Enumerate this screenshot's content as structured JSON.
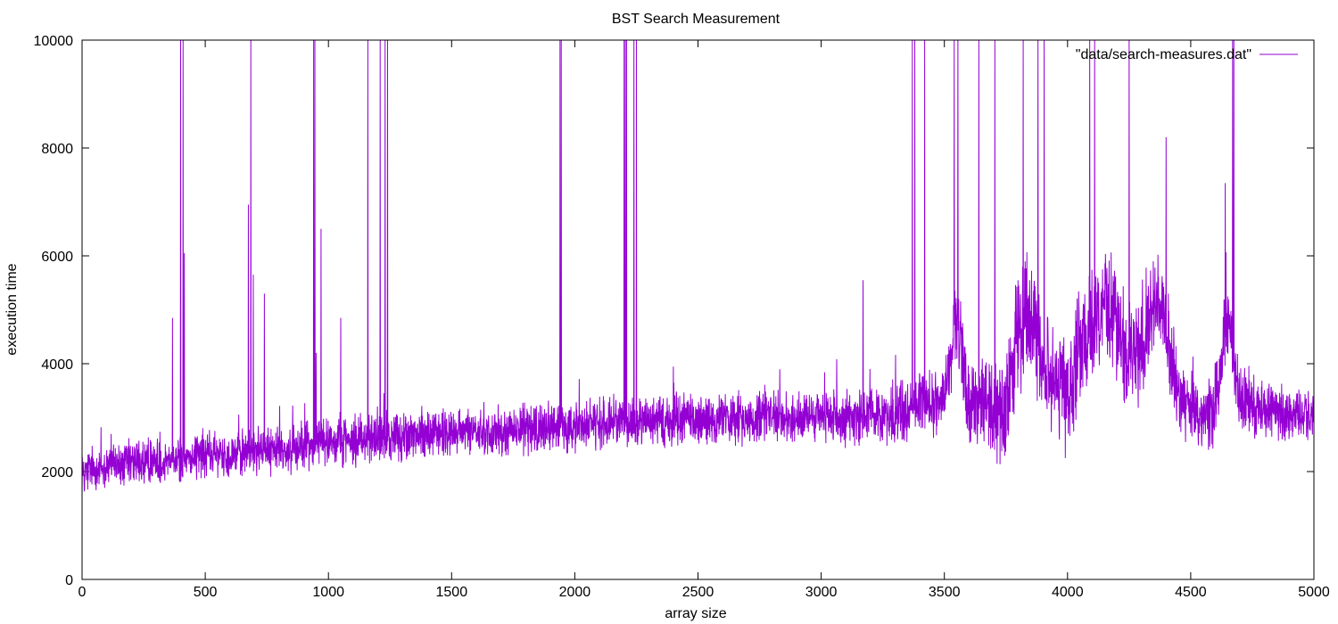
{
  "chart_data": {
    "type": "line",
    "title": "BST Search Measurement",
    "xlabel": "array size",
    "ylabel": "execution time",
    "xlim": [
      0,
      5000
    ],
    "ylim": [
      0,
      10000
    ],
    "x_ticks": [
      0,
      500,
      1000,
      1500,
      2000,
      2500,
      3000,
      3500,
      4000,
      4500,
      5000
    ],
    "y_ticks": [
      0,
      2000,
      4000,
      6000,
      8000,
      10000
    ],
    "x_tick_labels": [
      "0",
      "500",
      "1000",
      "1500",
      "2000",
      "2500",
      "3000",
      "3500",
      "4000",
      "4500",
      "5000"
    ],
    "y_tick_labels": [
      "0",
      "2000",
      "4000",
      "6000",
      "8000",
      "10000"
    ],
    "grid": false,
    "legend_position": "top-right",
    "series": [
      {
        "name": "\"data/search-measures.dat\"",
        "color": "#9400d3",
        "baseline_profile": [
          [
            0,
            2000
          ],
          [
            200,
            2150
          ],
          [
            400,
            2250
          ],
          [
            600,
            2350
          ],
          [
            800,
            2400
          ],
          [
            1000,
            2550
          ],
          [
            1200,
            2650
          ],
          [
            1500,
            2700
          ],
          [
            1800,
            2800
          ],
          [
            2000,
            2850
          ],
          [
            2200,
            2950
          ],
          [
            2500,
            2950
          ],
          [
            2800,
            3000
          ],
          [
            3000,
            3000
          ],
          [
            3200,
            3050
          ],
          [
            3400,
            3150
          ],
          [
            3500,
            3400
          ],
          [
            3550,
            4800
          ],
          [
            3600,
            3300
          ],
          [
            3750,
            3050
          ],
          [
            3800,
            4600
          ],
          [
            3850,
            5000
          ],
          [
            3900,
            4200
          ],
          [
            3950,
            3700
          ],
          [
            4000,
            3300
          ],
          [
            4050,
            4300
          ],
          [
            4100,
            4700
          ],
          [
            4150,
            5300
          ],
          [
            4200,
            4800
          ],
          [
            4250,
            4000
          ],
          [
            4300,
            4500
          ],
          [
            4350,
            5200
          ],
          [
            4400,
            4700
          ],
          [
            4450,
            3400
          ],
          [
            4500,
            3100
          ],
          [
            4550,
            3000
          ],
          [
            4600,
            3200
          ],
          [
            4650,
            4900
          ],
          [
            4700,
            3300
          ],
          [
            4800,
            3100
          ],
          [
            5000,
            3050
          ]
        ],
        "noise_amplitude": [
          [
            0,
            450
          ],
          [
            1000,
            500
          ],
          [
            2000,
            500
          ],
          [
            3000,
            500
          ],
          [
            3500,
            700
          ],
          [
            3800,
            1200
          ],
          [
            4000,
            1100
          ],
          [
            4200,
            1200
          ],
          [
            4400,
            1000
          ],
          [
            4500,
            600
          ],
          [
            4650,
            900
          ],
          [
            4800,
            550
          ],
          [
            5000,
            550
          ]
        ],
        "spikes": [
          [
            367,
            4850
          ],
          [
            400,
            10000
          ],
          [
            410,
            10000
          ],
          [
            415,
            6050
          ],
          [
            675,
            6950
          ],
          [
            685,
            10000
          ],
          [
            695,
            5650
          ],
          [
            740,
            5300
          ],
          [
            940,
            10000
          ],
          [
            945,
            10000
          ],
          [
            950,
            4200
          ],
          [
            970,
            6500
          ],
          [
            1050,
            4850
          ],
          [
            1160,
            10000
          ],
          [
            1210,
            10000
          ],
          [
            1230,
            10000
          ],
          [
            1240,
            10000
          ],
          [
            1940,
            10000
          ],
          [
            1945,
            10000
          ],
          [
            2200,
            10000
          ],
          [
            2205,
            10000
          ],
          [
            2210,
            10000
          ],
          [
            2240,
            10000
          ],
          [
            2250,
            10000
          ],
          [
            3170,
            5550
          ],
          [
            3370,
            10000
          ],
          [
            3380,
            10000
          ],
          [
            3420,
            10000
          ],
          [
            3540,
            10000
          ],
          [
            3555,
            10000
          ],
          [
            3640,
            10000
          ],
          [
            3705,
            10000
          ],
          [
            3820,
            10000
          ],
          [
            3880,
            10000
          ],
          [
            3905,
            10000
          ],
          [
            4090,
            10000
          ],
          [
            4110,
            10000
          ],
          [
            4250,
            10000
          ],
          [
            4400,
            8200
          ],
          [
            4640,
            7350
          ],
          [
            4670,
            10000
          ],
          [
            4675,
            10000
          ]
        ]
      }
    ]
  }
}
